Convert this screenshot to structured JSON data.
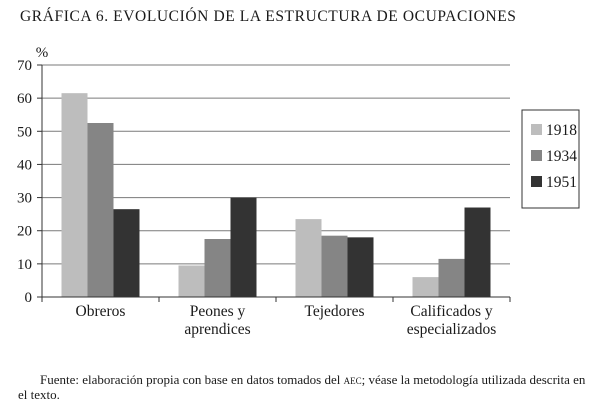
{
  "title": "GRÁFICA 6. EVOLUCIÓN DE LA ESTRUCTURA DE OCUPACIONES",
  "source": {
    "prefix": "Fuente: elaboración propia con base en datos tomados del ",
    "abbr": "aec",
    "suffix": "; véase la metodología utilizada descrita en el texto."
  },
  "chart_data": {
    "type": "bar",
    "ylabel": "%",
    "ylim": [
      0,
      70
    ],
    "yticks": [
      0,
      10,
      20,
      30,
      40,
      50,
      60,
      70
    ],
    "grid": true,
    "legend_position": "right",
    "categories": [
      [
        "Obreros"
      ],
      [
        "Peones y",
        "aprendices"
      ],
      [
        "Tejedores"
      ],
      [
        "Calificados y",
        "especializados"
      ]
    ],
    "series": [
      {
        "name": "1918",
        "color": "#bdbdbd",
        "values": [
          61.5,
          9.5,
          23.5,
          6.0
        ]
      },
      {
        "name": "1934",
        "color": "#858585",
        "values": [
          52.5,
          17.5,
          18.5,
          11.5
        ]
      },
      {
        "name": "1951",
        "color": "#333333",
        "values": [
          26.5,
          30.0,
          18.0,
          27.0
        ]
      }
    ]
  }
}
